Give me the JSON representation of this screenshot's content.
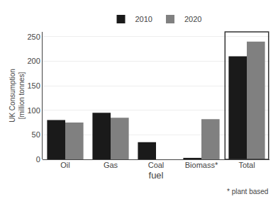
{
  "chart_data": {
    "type": "bar",
    "categories": [
      "Oil",
      "Gas",
      "Coal",
      "Biomass*",
      "Total"
    ],
    "series": [
      {
        "name": "2010",
        "color": "#1a1a1a",
        "values": [
          80,
          95,
          35,
          3,
          210
        ]
      },
      {
        "name": "2020",
        "color": "#808080",
        "values": [
          75,
          85,
          0,
          82,
          240
        ]
      }
    ],
    "xlabel": "fuel",
    "ylabel": "UK Consumption\n[million tonnes]",
    "ylim": [
      0,
      260
    ],
    "yticks": [
      0,
      50,
      100,
      150,
      200,
      250
    ],
    "grid": true,
    "legend": "top",
    "annotation": "* plant based"
  }
}
